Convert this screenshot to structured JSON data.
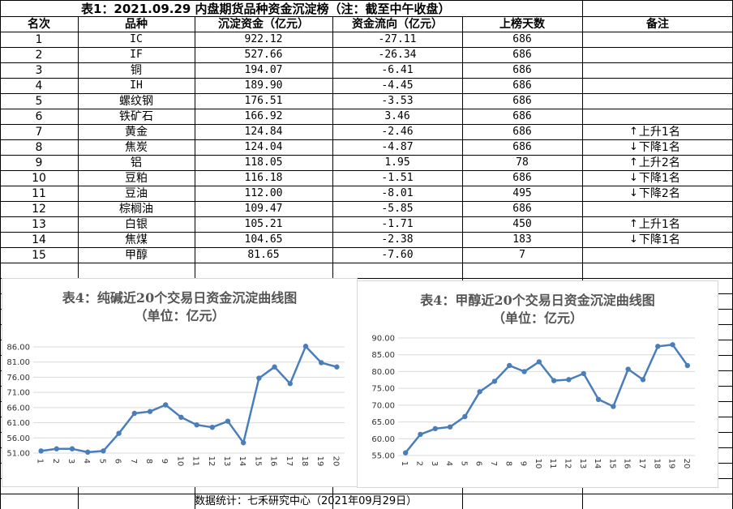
{
  "table": {
    "title": "表1：2021.09.29 内盘期货品种资金沉淀榜（注：截至中午收盘）",
    "headers": [
      "名次",
      "品种",
      "沉淀资金（亿元）",
      "资金流向（亿元）",
      "上榜天数",
      "备注"
    ],
    "rows": [
      {
        "rank": "1",
        "name": "IC",
        "capital": "922.12",
        "flow": "-27.11",
        "days": "686",
        "note_arrow": "",
        "note_text": ""
      },
      {
        "rank": "2",
        "name": "IF",
        "capital": "527.66",
        "flow": "-26.34",
        "days": "686",
        "note_arrow": "",
        "note_text": ""
      },
      {
        "rank": "3",
        "name": "铜",
        "capital": "194.07",
        "flow": "-6.41",
        "days": "686",
        "note_arrow": "",
        "note_text": ""
      },
      {
        "rank": "4",
        "name": "IH",
        "capital": "189.90",
        "flow": "-4.45",
        "days": "686",
        "note_arrow": "",
        "note_text": ""
      },
      {
        "rank": "5",
        "name": "螺纹钢",
        "capital": "176.51",
        "flow": "-3.53",
        "days": "686",
        "note_arrow": "",
        "note_text": ""
      },
      {
        "rank": "6",
        "name": "铁矿石",
        "capital": "166.92",
        "flow": "3.46",
        "days": "686",
        "note_arrow": "",
        "note_text": ""
      },
      {
        "rank": "7",
        "name": "黄金",
        "capital": "124.84",
        "flow": "-2.46",
        "days": "686",
        "note_arrow": "↑",
        "note_text": "上升1名"
      },
      {
        "rank": "8",
        "name": "焦炭",
        "capital": "124.04",
        "flow": "-4.87",
        "days": "686",
        "note_arrow": "↓",
        "note_text": "下降1名"
      },
      {
        "rank": "9",
        "name": "铝",
        "capital": "118.05",
        "flow": "1.95",
        "days": "78",
        "note_arrow": "↑",
        "note_text": "上升2名"
      },
      {
        "rank": "10",
        "name": "豆粕",
        "capital": "116.18",
        "flow": "-1.51",
        "days": "686",
        "note_arrow": "↓",
        "note_text": "下降1名"
      },
      {
        "rank": "11",
        "name": "豆油",
        "capital": "112.00",
        "flow": "-8.01",
        "days": "495",
        "note_arrow": "↓",
        "note_text": "下降2名"
      },
      {
        "rank": "12",
        "name": "棕榈油",
        "capital": "109.47",
        "flow": "-5.85",
        "days": "686",
        "note_arrow": "",
        "note_text": ""
      },
      {
        "rank": "13",
        "name": "白银",
        "capital": "105.21",
        "flow": "-1.71",
        "days": "450",
        "note_arrow": "↑",
        "note_text": "上升1名"
      },
      {
        "rank": "14",
        "name": "焦煤",
        "capital": "104.65",
        "flow": "-2.38",
        "days": "183",
        "note_arrow": "↓",
        "note_text": "下降1名"
      },
      {
        "rank": "15",
        "name": "甲醇",
        "capital": "81.65",
        "flow": "-7.60",
        "days": "7",
        "note_arrow": "",
        "note_text": ""
      }
    ]
  },
  "footer": "数据统计：七禾研究中心（2021年09月29日）",
  "chart_data": [
    {
      "type": "line",
      "title": "表4：纯碱近20个交易日资金沉淀曲线图",
      "subtitle": "（单位：亿元）",
      "x": [
        "1",
        "2",
        "3",
        "4",
        "5",
        "6",
        "7",
        "8",
        "9",
        "10",
        "11",
        "12",
        "13",
        "14",
        "15",
        "16",
        "17",
        "18",
        "19",
        "20"
      ],
      "values": [
        51.7,
        52.4,
        52.4,
        51.3,
        51.7,
        57.5,
        64.1,
        64.7,
        66.9,
        62.8,
        60.3,
        59.5,
        61.5,
        54.4,
        75.7,
        79.4,
        73.9,
        86.2,
        80.8,
        79.4
      ],
      "yticks": [
        "51.00",
        "56.00",
        "61.00",
        "66.00",
        "71.00",
        "76.00",
        "81.00",
        "86.00"
      ],
      "ylim": [
        51,
        86
      ],
      "color": "#4a7ebb",
      "grid": true
    },
    {
      "type": "line",
      "title": "表4：甲醇近20个交易日资金沉淀曲线图",
      "subtitle": "（单位：亿元）",
      "x": [
        "1",
        "2",
        "3",
        "4",
        "5",
        "6",
        "7",
        "8",
        "9",
        "10",
        "11",
        "12",
        "13",
        "14",
        "15",
        "16",
        "17",
        "18",
        "19",
        "20"
      ],
      "values": [
        55.8,
        61.3,
        63.0,
        63.5,
        66.6,
        74.0,
        77.1,
        81.8,
        80.0,
        82.9,
        77.3,
        77.6,
        79.4,
        71.7,
        69.6,
        80.7,
        77.6,
        87.5,
        88.0,
        81.8
      ],
      "yticks": [
        "55.00",
        "60.00",
        "65.00",
        "70.00",
        "75.00",
        "80.00",
        "85.00",
        "90.00"
      ],
      "ylim": [
        55,
        90
      ],
      "color": "#4a7ebb",
      "grid": true
    }
  ]
}
